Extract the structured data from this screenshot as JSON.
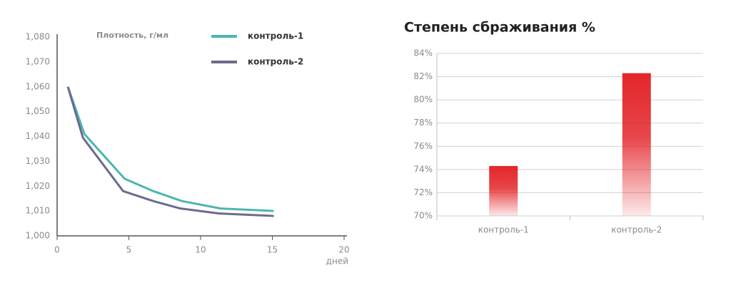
{
  "chart_data": [
    {
      "type": "line",
      "y_label": "Плотность, г/мл",
      "x_label": "дней",
      "xlim": [
        0,
        20
      ],
      "xticks": [
        0,
        5,
        10,
        15,
        20
      ],
      "ylim": [
        1.0,
        1.08
      ],
      "yticks": [
        {
          "value": 1.0,
          "label": "1,000"
        },
        {
          "value": 1.01,
          "label": "1,010"
        },
        {
          "value": 1.02,
          "label": "1,020"
        },
        {
          "value": 1.03,
          "label": "1,030"
        },
        {
          "value": 1.04,
          "label": "1,040"
        },
        {
          "value": 1.05,
          "label": "1,050"
        },
        {
          "value": 1.06,
          "label": "1,060"
        },
        {
          "value": 1.07,
          "label": "1,070"
        },
        {
          "value": 1.08,
          "label": "1,080"
        }
      ],
      "series": [
        {
          "name": "контроль-1",
          "color": "#4cb6b1",
          "x": [
            0.75,
            1.9,
            4.7,
            6.7,
            8.7,
            11.4,
            15.1
          ],
          "values": [
            1.06,
            1.041,
            1.023,
            1.018,
            1.014,
            1.011,
            1.01
          ]
        },
        {
          "name": "контроль-2",
          "color": "#6c6a8e",
          "x": [
            0.75,
            1.8,
            4.6,
            6.7,
            8.6,
            11.3,
            15.1
          ],
          "values": [
            1.06,
            1.0395,
            1.018,
            1.014,
            1.011,
            1.009,
            1.008
          ]
        }
      ]
    },
    {
      "type": "bar",
      "title": "Степень сбраживания %",
      "categories": [
        "контроль-1",
        "контроль-2"
      ],
      "values": [
        74.3,
        82.3
      ],
      "color": "#e3262a",
      "ylim": [
        70,
        84
      ],
      "yticks": [
        {
          "value": 70,
          "label": "70%"
        },
        {
          "value": 72,
          "label": "72%"
        },
        {
          "value": 74,
          "label": "74%"
        },
        {
          "value": 76,
          "label": "76%"
        },
        {
          "value": 78,
          "label": "78%"
        },
        {
          "value": 80,
          "label": "80%"
        },
        {
          "value": 82,
          "label": "82%"
        },
        {
          "value": 84,
          "label": "84%"
        }
      ],
      "grid": true
    }
  ]
}
